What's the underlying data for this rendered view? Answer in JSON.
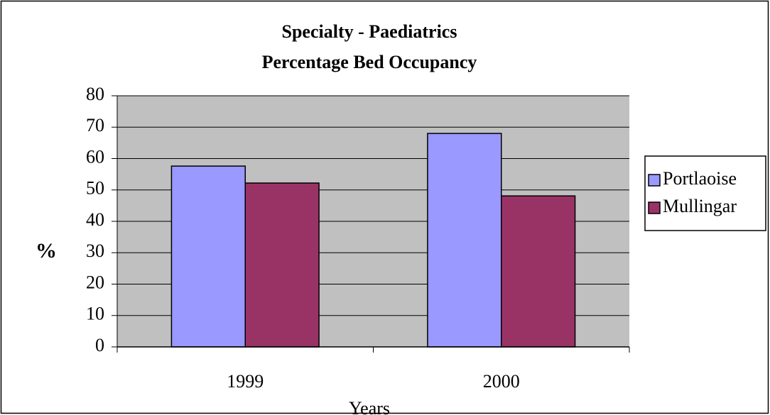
{
  "chart_data": {
    "type": "bar",
    "title": "Specialty - Paediatrics",
    "subtitle": "Percentage Bed Occupancy",
    "x_label": "Years",
    "y_label": "%",
    "categories": [
      "1999",
      "2000"
    ],
    "series": [
      {
        "name": "Portlaoise",
        "color": "#9999ff",
        "values": [
          57.6,
          68
        ]
      },
      {
        "name": "Mullingar",
        "color": "#993366",
        "values": [
          52.2,
          48.1
        ]
      }
    ],
    "ylim": [
      0,
      80
    ],
    "yticks": [
      0,
      10,
      20,
      30,
      40,
      50,
      60,
      70,
      80
    ],
    "grid": true,
    "legend": "right",
    "plot_background": "#c0c0c0"
  }
}
